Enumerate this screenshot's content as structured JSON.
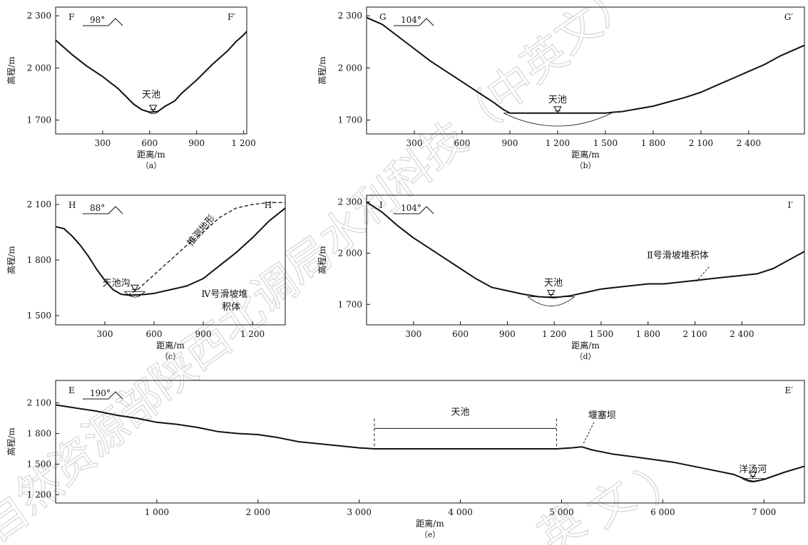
{
  "watermark": {
    "text": "自然资源部陕西北调局水利科技（中英文）"
  },
  "chart_data": [
    {
      "type": "line",
      "id": "a",
      "ylabel": "高程/m",
      "xlabel": "距离/m",
      "caption": "（a）",
      "left_label": "F",
      "right_label": "F′",
      "orientation": "98°",
      "xlim": [
        0,
        1220
      ],
      "ylim": [
        1620,
        2350
      ],
      "xticks": [
        300,
        600,
        900,
        1200
      ],
      "xtick_labels": [
        "300",
        "600",
        "900",
        "1 200"
      ],
      "yticks": [
        1700,
        2000,
        2300
      ],
      "ytick_labels": [
        "1 700",
        "2 000",
        "2 300"
      ],
      "series": [
        {
          "style": "solid",
          "x": [
            0,
            100,
            200,
            300,
            400,
            500,
            550,
            600,
            650,
            700,
            760,
            800,
            900,
            1000,
            1100,
            1150,
            1200,
            1220
          ],
          "y": [
            2160,
            2080,
            2010,
            1950,
            1880,
            1790,
            1760,
            1745,
            1748,
            1780,
            1810,
            1850,
            1930,
            2020,
            2100,
            2150,
            2190,
            2210
          ]
        }
      ],
      "lake": {
        "x0": 590,
        "x1": 655,
        "level": 1748,
        "depth": 12
      },
      "annotations": [
        {
          "text": "天池",
          "x": 610,
          "y": 1830
        }
      ]
    },
    {
      "type": "line",
      "id": "b",
      "ylabel": "高程/m",
      "xlabel": "距离/m",
      "caption": "（b）",
      "left_label": "G",
      "right_label": "G′",
      "orientation": "104°",
      "xlim": [
        0,
        2750
      ],
      "ylim": [
        1620,
        2350
      ],
      "xticks": [
        300,
        600,
        900,
        1200,
        1500,
        1800,
        2100,
        2400
      ],
      "xtick_labels": [
        "300",
        "600",
        "900",
        "1 200",
        "1 500",
        "1 800",
        "2 100",
        "2 400"
      ],
      "yticks": [
        1700,
        2000,
        2300
      ],
      "ytick_labels": [
        "1 700",
        "2 000",
        "2 300"
      ],
      "series": [
        {
          "style": "solid",
          "x": [
            0,
            100,
            200,
            300,
            400,
            500,
            600,
            700,
            800,
            860,
            900,
            1000,
            1200,
            1400,
            1500,
            1550,
            1600,
            1800,
            2000,
            2100,
            2200,
            2300,
            2400,
            2500,
            2600,
            2750
          ],
          "y": [
            2290,
            2250,
            2180,
            2110,
            2040,
            1980,
            1920,
            1860,
            1800,
            1760,
            1740,
            1740,
            1740,
            1740,
            1740,
            1745,
            1748,
            1780,
            1830,
            1860,
            1900,
            1940,
            1980,
            2020,
            2070,
            2130
          ]
        }
      ],
      "lake": {
        "x0": 860,
        "x1": 1540,
        "level": 1740,
        "depth": 75
      },
      "annotations": [
        {
          "text": "天池",
          "x": 1200,
          "y": 1800
        }
      ]
    },
    {
      "type": "line",
      "id": "c",
      "ylabel": "高程/m",
      "xlabel": "距离/m",
      "caption": "（c）",
      "left_label": "H",
      "right_label": "H′",
      "orientation": "88°",
      "xlim": [
        0,
        1400
      ],
      "ylim": [
        1450,
        2150
      ],
      "xticks": [
        300,
        600,
        900,
        1200
      ],
      "xtick_labels": [
        "300",
        "600",
        "900",
        "1 200"
      ],
      "yticks": [
        1500,
        1800,
        2100
      ],
      "ytick_labels": [
        "1 500",
        "1 800",
        "2 100"
      ],
      "series": [
        {
          "name": "",
          "style": "solid",
          "x": [
            0,
            50,
            100,
            150,
            200,
            250,
            300,
            350,
            400,
            450,
            500,
            550,
            600,
            700,
            800,
            900,
            1000,
            1100,
            1200,
            1300,
            1400
          ],
          "y": [
            1980,
            1970,
            1930,
            1880,
            1820,
            1750,
            1690,
            1640,
            1615,
            1610,
            1612,
            1615,
            1620,
            1640,
            1660,
            1700,
            1770,
            1840,
            1920,
            2010,
            2080
          ]
        },
        {
          "name": "推测地形",
          "style": "dashed",
          "x": [
            440,
            500,
            600,
            700,
            800,
            900,
            1000,
            1100,
            1200,
            1300,
            1400
          ],
          "y": [
            1610,
            1640,
            1720,
            1800,
            1880,
            1950,
            2030,
            2080,
            2100,
            2110,
            2110
          ]
        }
      ],
      "lake": {
        "x0": 420,
        "x1": 545,
        "level": 1630,
        "depth": 30
      },
      "annotations": [
        {
          "text": "天池沟",
          "x": 370,
          "y": 1660
        },
        {
          "text": "推测地形",
          "x": 900,
          "y": 1950
        },
        {
          "text": "Ⅳ号滑坡堆",
          "x": 1030,
          "y": 1600
        },
        {
          "text": "积体",
          "x": 1070,
          "y": 1530
        }
      ]
    },
    {
      "type": "line",
      "id": "d",
      "ylabel": "高程/m",
      "xlabel": "距离/m",
      "caption": "（d）",
      "left_label": "I",
      "right_label": "I′",
      "orientation": "104°",
      "xlim": [
        0,
        2800
      ],
      "ylim": [
        1580,
        2340
      ],
      "xticks": [
        300,
        600,
        900,
        1200,
        1500,
        1800,
        2100,
        2400
      ],
      "xtick_labels": [
        "300",
        "600",
        "900",
        "1 200",
        "1 500",
        "1 800",
        "2 100",
        "2 400"
      ],
      "yticks": [
        1700,
        2000,
        2300
      ],
      "ytick_labels": [
        "1 700",
        "2 000",
        "2 300"
      ],
      "series": [
        {
          "style": "solid",
          "x": [
            0,
            100,
            200,
            300,
            400,
            500,
            600,
            700,
            800,
            900,
            1000,
            1100,
            1200,
            1300,
            1400,
            1500,
            1600,
            1700,
            1800,
            1900,
            2000,
            2100,
            2200,
            2300,
            2400,
            2500,
            2600,
            2700,
            2800
          ],
          "y": [
            2300,
            2240,
            2160,
            2090,
            2030,
            1970,
            1910,
            1850,
            1800,
            1780,
            1760,
            1745,
            1740,
            1750,
            1770,
            1790,
            1800,
            1810,
            1820,
            1820,
            1830,
            1840,
            1850,
            1860,
            1870,
            1880,
            1910,
            1960,
            2010
          ]
        }
      ],
      "lake": {
        "x0": 1030,
        "x1": 1330,
        "level": 1745,
        "depth": 55
      },
      "annotations": [
        {
          "text": "天池",
          "x": 1195,
          "y": 1810
        },
        {
          "text": "Ⅱ号滑坡堆积体",
          "x": 1990,
          "y": 1970
        }
      ]
    },
    {
      "type": "line",
      "id": "e",
      "ylabel": "高程/m",
      "xlabel": "距离/m",
      "caption": "（e）",
      "left_label": "E",
      "right_label": "E′",
      "orientation": "190°",
      "xlim": [
        0,
        7400
      ],
      "ylim": [
        1120,
        2320
      ],
      "xticks": [
        1000,
        2000,
        3000,
        4000,
        5000,
        6000,
        7000
      ],
      "xtick_labels": [
        "1 000",
        "2 000",
        "3 000",
        "4 000",
        "5 000",
        "6 000",
        "7 000"
      ],
      "yticks": [
        1200,
        1500,
        1800,
        2100
      ],
      "ytick_labels": [
        "1 200",
        "1 500",
        "1 800",
        "2 100"
      ],
      "series": [
        {
          "style": "solid",
          "x": [
            0,
            200,
            400,
            600,
            800,
            1000,
            1200,
            1400,
            1600,
            1800,
            2000,
            2200,
            2400,
            2600,
            2800,
            3000,
            3150,
            3400,
            3800,
            4200,
            4600,
            4950,
            5100,
            5200,
            5300,
            5500,
            5800,
            6100,
            6400,
            6700,
            6850,
            6900,
            7000,
            7200,
            7400
          ],
          "y": [
            2080,
            2050,
            2020,
            1980,
            1950,
            1910,
            1890,
            1860,
            1820,
            1800,
            1790,
            1760,
            1720,
            1700,
            1680,
            1660,
            1650,
            1650,
            1650,
            1650,
            1650,
            1650,
            1660,
            1670,
            1640,
            1600,
            1560,
            1520,
            1460,
            1400,
            1340,
            1330,
            1350,
            1420,
            1480
          ]
        }
      ],
      "lake": {
        "x0": 6780,
        "x1": 7000,
        "level": 1360,
        "depth": 35
      },
      "bracket": {
        "x0": 3150,
        "x1": 4950,
        "y": 1850,
        "label": "天池"
      },
      "annotations": [
        {
          "text": "天池",
          "x": 4000,
          "y": 1980
        },
        {
          "text": "堰塞坝",
          "x": 5400,
          "y": 1950
        },
        {
          "text": "洋汤河",
          "x": 6890,
          "y": 1420
        }
      ]
    }
  ]
}
